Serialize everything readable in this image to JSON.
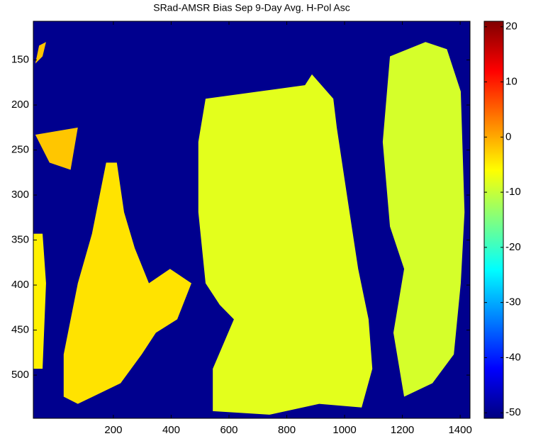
{
  "chart_data": {
    "type": "heatmap",
    "title": "SRad-AMSR Bias Sep 9-Day Avg. H-Pol Asc",
    "xlim": [
      -77,
      1434
    ],
    "ylim": [
      107,
      548
    ],
    "y_reversed": true,
    "xticks": [
      200,
      400,
      600,
      800,
      1000,
      1200,
      1400
    ],
    "yticks": [
      150,
      200,
      250,
      300,
      350,
      400,
      450,
      500
    ],
    "colormap": "jet",
    "clim": [
      -51,
      21
    ],
    "cticks": [
      -50,
      -40,
      -30,
      -20,
      -10,
      0,
      10,
      20
    ],
    "background_value": -50,
    "regions": [
      {
        "value": -8,
        "x": [
          519,
          863,
          887,
          961,
          973,
          1010,
          1047,
          1083,
          1096,
          1059,
          912,
          740,
          544,
          544,
          617,
          568,
          519,
          494,
          494
        ],
        "y": [
          193,
          178,
          166,
          193,
          225,
          304,
          382,
          438,
          493,
          536,
          532,
          544,
          540,
          493,
          438,
          422,
          398,
          319,
          241
        ]
      },
      {
        "value": -9,
        "x": [
          1157,
          1280,
          1354,
          1402,
          1415,
          1402,
          1378,
          1304,
          1206,
          1169,
          1206,
          1157,
          1132
        ],
        "y": [
          146,
          130,
          138,
          185,
          319,
          398,
          477,
          509,
          524,
          453,
          382,
          335,
          241
        ]
      },
      {
        "value": -4,
        "x": [
          175,
          212,
          237,
          274,
          323,
          396,
          470,
          421,
          347,
          298,
          225,
          77,
          28,
          28,
          77,
          126
        ],
        "y": [
          264,
          264,
          319,
          359,
          398,
          382,
          398,
          438,
          453,
          477,
          509,
          532,
          524,
          477,
          398,
          343
        ]
      },
      {
        "value": -5,
        "x": [
          -77,
          -45,
          -33,
          -45,
          -77
        ],
        "y": [
          343,
          343,
          398,
          493,
          493
        ]
      },
      {
        "value": -2,
        "x": [
          -70,
          77,
          52,
          -21
        ],
        "y": [
          233,
          225,
          272,
          264
        ]
      },
      {
        "value": -2,
        "x": [
          -57,
          -33,
          -45,
          -70
        ],
        "y": [
          134,
          130,
          146,
          154
        ]
      }
    ]
  }
}
